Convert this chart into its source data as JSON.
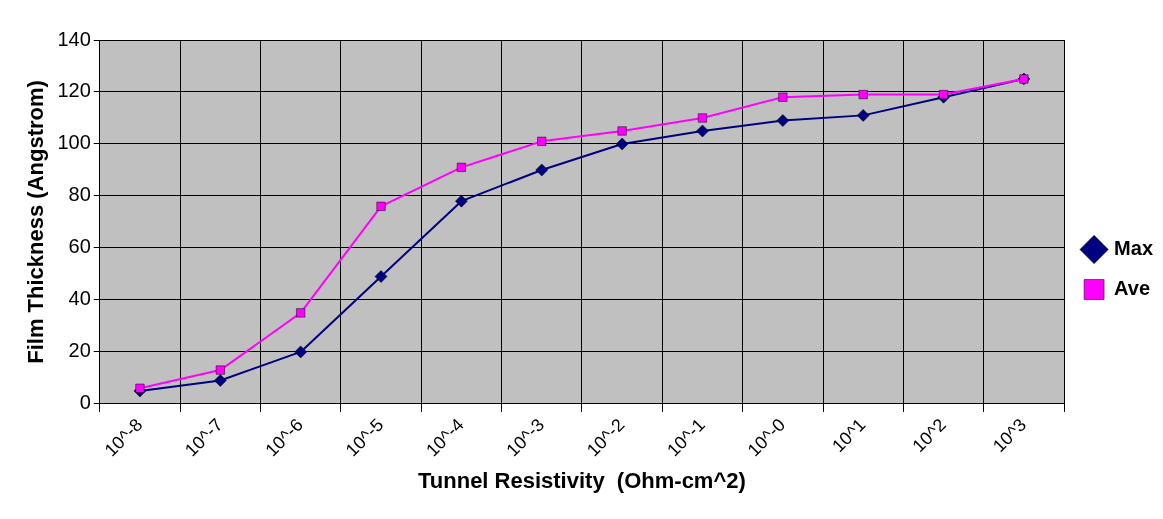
{
  "chart_data": {
    "type": "line",
    "xlabel": "Tunnel Resistivity  (Ohm-cm^2)",
    "ylabel": "Film Thickness (Angstrom)",
    "categories": [
      "10^-8",
      "10^-7",
      "10^-6",
      "10^-5",
      "10^-4",
      "10^-3",
      "10^-2",
      "10^-1",
      "10^-0",
      "10^1",
      "10^2",
      "10^3"
    ],
    "series": [
      {
        "name": "Max",
        "color": "#000080",
        "marker": "diamond",
        "values": [
          5,
          9,
          20,
          49,
          78,
          90,
          100,
          105,
          109,
          111,
          118,
          125
        ]
      },
      {
        "name": "Ave",
        "color": "#ff00ff",
        "marker": "square",
        "values": [
          6,
          13,
          35,
          76,
          91,
          101,
          105,
          110,
          118,
          119,
          119,
          125
        ]
      }
    ],
    "ylim": [
      0,
      140
    ],
    "yticks": [
      0,
      20,
      40,
      60,
      80,
      100,
      120,
      140
    ],
    "grid": true,
    "legend": "right",
    "line_style": "solid"
  }
}
